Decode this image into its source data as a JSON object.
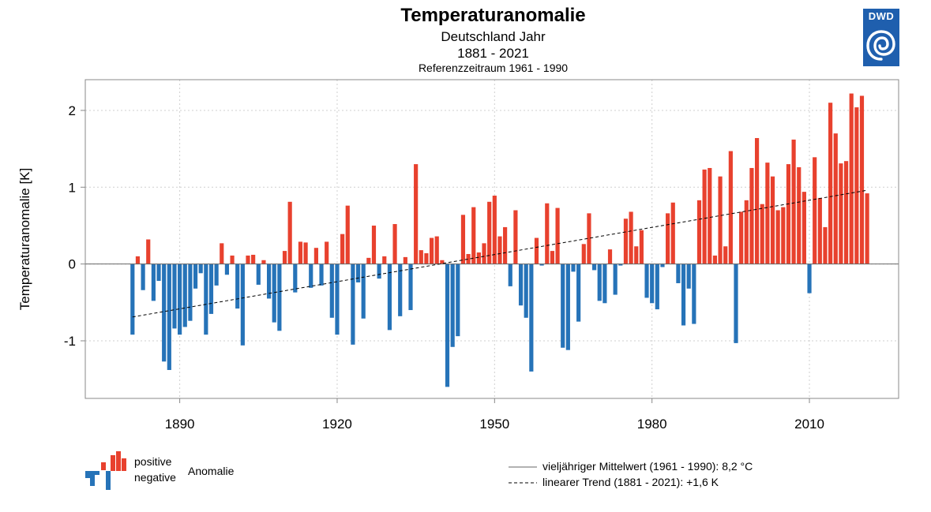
{
  "chart_data": {
    "type": "bar",
    "title": "Temperaturanomalie",
    "subtitle": "Deutschland Jahr",
    "period": "1881 - 2021",
    "reference": "Referenzzeitraum 1961 - 1990",
    "ylabel": "Temperaturanomalie [K]",
    "xlabel": "",
    "ylim": [
      -1.75,
      2.4
    ],
    "xlim": [
      1872,
      2027
    ],
    "grid": true,
    "yticks": [
      2,
      1,
      0,
      -1
    ],
    "ytick_labels": [
      "2",
      "1",
      "0",
      "-1"
    ],
    "xticks": [
      1890,
      1920,
      1950,
      1980,
      2010
    ],
    "xtick_labels": [
      "1890",
      "1920",
      "1950",
      "1980",
      "2010"
    ],
    "x": [
      1881,
      1882,
      1883,
      1884,
      1885,
      1886,
      1887,
      1888,
      1889,
      1890,
      1891,
      1892,
      1893,
      1894,
      1895,
      1896,
      1897,
      1898,
      1899,
      1900,
      1901,
      1902,
      1903,
      1904,
      1905,
      1906,
      1907,
      1908,
      1909,
      1910,
      1911,
      1912,
      1913,
      1914,
      1915,
      1916,
      1917,
      1918,
      1919,
      1920,
      1921,
      1922,
      1923,
      1924,
      1925,
      1926,
      1927,
      1928,
      1929,
      1930,
      1931,
      1932,
      1933,
      1934,
      1935,
      1936,
      1937,
      1938,
      1939,
      1940,
      1941,
      1942,
      1943,
      1944,
      1945,
      1946,
      1947,
      1948,
      1949,
      1950,
      1951,
      1952,
      1953,
      1954,
      1955,
      1956,
      1957,
      1958,
      1959,
      1960,
      1961,
      1962,
      1963,
      1964,
      1965,
      1966,
      1967,
      1968,
      1969,
      1970,
      1971,
      1972,
      1973,
      1974,
      1975,
      1976,
      1977,
      1978,
      1979,
      1980,
      1981,
      1982,
      1983,
      1984,
      1985,
      1986,
      1987,
      1988,
      1989,
      1990,
      1991,
      1992,
      1993,
      1994,
      1995,
      1996,
      1997,
      1998,
      1999,
      2000,
      2001,
      2002,
      2003,
      2004,
      2005,
      2006,
      2007,
      2008,
      2009,
      2010,
      2011,
      2012,
      2013,
      2014,
      2015,
      2016,
      2017,
      2018,
      2019,
      2020,
      2021
    ],
    "values": [
      -0.92,
      0.1,
      -0.34,
      0.32,
      -0.48,
      -0.22,
      -1.27,
      -1.38,
      -0.84,
      -0.92,
      -0.82,
      -0.74,
      -0.32,
      -0.12,
      -0.92,
      -0.65,
      -0.28,
      0.27,
      -0.14,
      0.11,
      -0.58,
      -1.06,
      0.11,
      0.12,
      -0.27,
      0.05,
      -0.45,
      -0.76,
      -0.87,
      0.17,
      0.81,
      -0.37,
      0.29,
      0.28,
      -0.31,
      0.21,
      -0.28,
      0.29,
      -0.7,
      -0.92,
      0.39,
      0.76,
      -1.05,
      -0.24,
      -0.71,
      0.08,
      0.5,
      -0.19,
      0.1,
      -0.86,
      0.52,
      -0.68,
      0.09,
      -0.6,
      1.3,
      0.18,
      0.14,
      0.34,
      0.36,
      0.05,
      -1.6,
      -1.08,
      -0.94,
      0.64,
      0.13,
      0.74,
      0.15,
      0.27,
      0.81,
      0.89,
      0.36,
      0.48,
      -0.29,
      0.7,
      -0.54,
      -0.7,
      -1.4,
      0.34,
      -0.02,
      0.79,
      0.17,
      0.73,
      -1.09,
      -1.12,
      -0.1,
      -0.75,
      0.26,
      0.66,
      -0.08,
      -0.48,
      -0.51,
      0.19,
      -0.4,
      -0.02,
      0.59,
      0.68,
      0.23,
      0.44,
      -0.44,
      -0.51,
      -0.59,
      -0.04,
      0.66,
      0.8,
      -0.25,
      -0.8,
      -0.32,
      -0.78,
      0.83,
      1.23,
      1.25,
      0.11,
      1.14,
      0.23,
      1.47,
      -1.03,
      0.68,
      0.83,
      1.25,
      1.64,
      0.78,
      1.32,
      1.14,
      0.7,
      0.74,
      1.3,
      1.62,
      1.26,
      0.94,
      -0.38,
      1.39,
      0.86,
      0.48,
      2.1,
      1.7,
      1.31,
      1.34,
      2.22,
      2.04,
      2.19,
      0.92
    ],
    "trend": {
      "start_year": 1881,
      "start_value": -0.69,
      "end_year": 2021,
      "end_value": 0.96
    },
    "colors": {
      "positive": "#e8412e",
      "negative": "#2673b8",
      "grid": "#cfcfcf",
      "axis": "#888888",
      "trend": "#000000"
    }
  },
  "legend": {
    "positive_label": "positive",
    "negative_label": "negative",
    "anomaly_label": "Anomalie",
    "mean_label": "vieljähriger Mittelwert (1961 - 1990): 8,2 °C",
    "trend_label": "linearer Trend (1881 - 2021): +1,6 K"
  },
  "logo": {
    "text": "DWD",
    "color": "#1f5fae"
  }
}
